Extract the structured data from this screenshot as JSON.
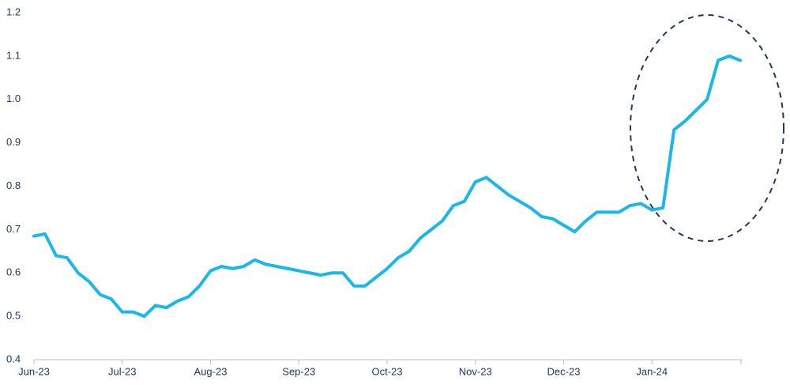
{
  "chart_data": {
    "type": "line",
    "categories": [
      "Jun-23",
      null,
      null,
      null,
      null,
      null,
      null,
      null,
      "Jul-23",
      null,
      null,
      null,
      null,
      null,
      null,
      null,
      "Aug-23",
      null,
      null,
      null,
      null,
      null,
      null,
      null,
      "Sep-23",
      null,
      null,
      null,
      null,
      null,
      null,
      null,
      "Oct-23",
      null,
      null,
      null,
      null,
      null,
      null,
      null,
      "Nov-23",
      null,
      null,
      null,
      null,
      null,
      null,
      null,
      "Dec-23",
      null,
      null,
      null,
      null,
      null,
      null,
      null,
      "Jan-24",
      null,
      null,
      null,
      null,
      null,
      null,
      null,
      null
    ],
    "series": [
      {
        "color": "#1ab7ea",
        "values": [
          0.685,
          0.69,
          0.64,
          0.635,
          0.6,
          0.58,
          0.55,
          0.54,
          0.51,
          0.51,
          0.5,
          0.525,
          0.52,
          0.535,
          0.545,
          0.57,
          0.605,
          0.615,
          0.61,
          0.615,
          0.63,
          0.62,
          0.615,
          0.61,
          0.605,
          0.6,
          0.595,
          0.6,
          0.6,
          0.57,
          0.57,
          0.59,
          0.61,
          0.635,
          0.65,
          0.68,
          0.7,
          0.72,
          0.755,
          0.765,
          0.81,
          0.82,
          0.8,
          0.78,
          0.765,
          0.75,
          0.73,
          0.725,
          0.71,
          0.695,
          0.72,
          0.74,
          0.74,
          0.74,
          0.755,
          0.76,
          0.745,
          0.75,
          0.93,
          0.95,
          0.975,
          1.0,
          1.09,
          1.1,
          1.09
        ]
      }
    ],
    "ylim": [
      0.4,
      1.2
    ],
    "yticks": [
      0.4,
      0.5,
      0.6,
      0.7,
      0.8,
      0.9,
      {
        "value": 1,
        "label": "1.0"
      },
      1.1,
      1.2
    ],
    "grid": false
  }
}
